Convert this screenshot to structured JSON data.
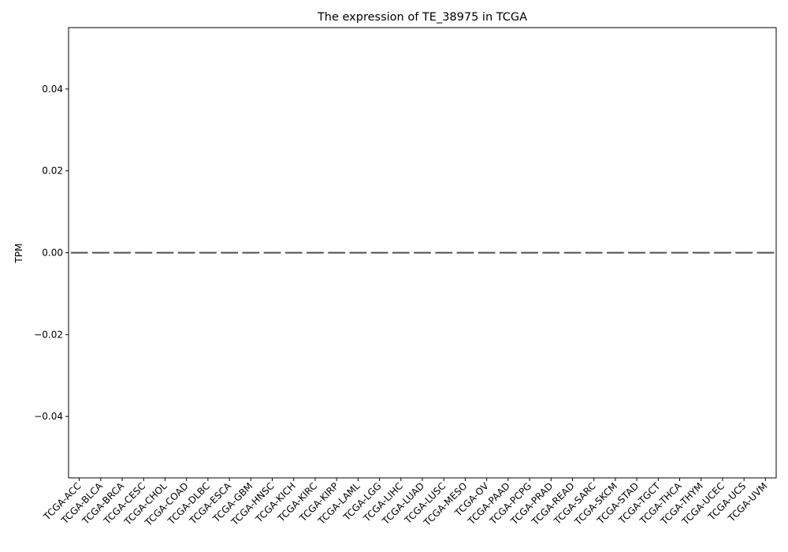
{
  "chart_data": {
    "type": "box",
    "title": "The expression of TE_38975 in TCGA",
    "xlabel": "",
    "ylabel": "TPM",
    "ylim": [
      -0.055,
      0.055
    ],
    "yticks": [
      0.04,
      0.02,
      0.0,
      -0.02,
      -0.04
    ],
    "ytick_labels": [
      "0.04",
      "0.02",
      "0.00",
      "−0.02",
      "−0.04"
    ],
    "grid": false,
    "legend": "none",
    "box_color": "#4d4d4d",
    "categories": [
      "TCGA-ACC",
      "TCGA-BLCA",
      "TCGA-BRCA",
      "TCGA-CESC",
      "TCGA-CHOL",
      "TCGA-COAD",
      "TCGA-DLBC",
      "TCGA-ESCA",
      "TCGA-GBM",
      "TCGA-HNSC",
      "TCGA-KICH",
      "TCGA-KIRC",
      "TCGA-KIRP",
      "TCGA-LAML",
      "TCGA-LGG",
      "TCGA-LIHC",
      "TCGA-LUAD",
      "TCGA-LUSC",
      "TCGA-MESO",
      "TCGA-OV",
      "TCGA-PAAD",
      "TCGA-PCPG",
      "TCGA-PRAD",
      "TCGA-READ",
      "TCGA-SARC",
      "TCGA-SKCM",
      "TCGA-STAD",
      "TCGA-TGCT",
      "TCGA-THCA",
      "TCGA-THYM",
      "TCGA-UCEC",
      "TCGA-UCS",
      "TCGA-UVM"
    ],
    "values": [
      0,
      0,
      0,
      0,
      0,
      0,
      0,
      0,
      0,
      0,
      0,
      0,
      0,
      0,
      0,
      0,
      0,
      0,
      0,
      0,
      0,
      0,
      0,
      0,
      0,
      0,
      0,
      0,
      0,
      0,
      0,
      0,
      0
    ]
  }
}
